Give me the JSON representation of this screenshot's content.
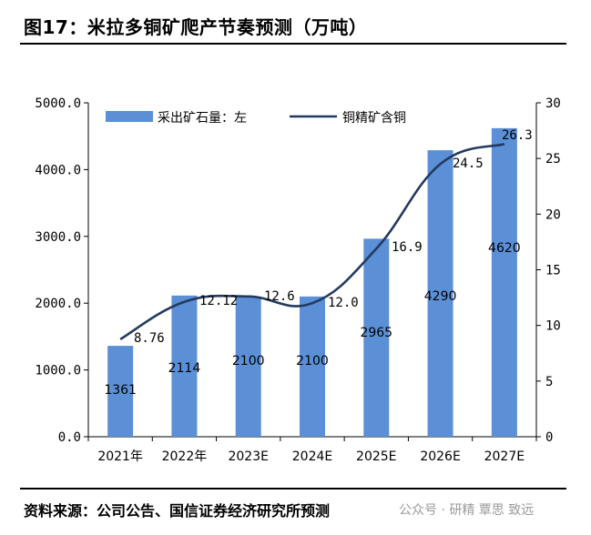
{
  "title": "图17：米拉多铜矿爬产节奏预测（万吨）",
  "source": "资料来源：公司公告、国信证券经济研究所预测",
  "watermark": "公众号 · 研精 覃思 致远",
  "chart_data": {
    "type": "bar+line",
    "categories": [
      "2021年",
      "2022年",
      "2023E",
      "2024E",
      "2025E",
      "2026E",
      "2027E"
    ],
    "series": [
      {
        "name": "采出矿石量：左",
        "type": "bar",
        "axis": "left",
        "values": [
          1361,
          2114,
          2100,
          2100,
          2965,
          4290,
          4620
        ],
        "labels": [
          "1361",
          "2114",
          "2100",
          "2100",
          "2965",
          "4290",
          "4620"
        ],
        "color": "#5b8fd6"
      },
      {
        "name": "铜精矿含铜",
        "type": "line",
        "axis": "right",
        "values": [
          8.76,
          12.12,
          12.6,
          12.0,
          16.9,
          24.5,
          26.3
        ],
        "labels": [
          "8.76",
          "12.12",
          "12.6",
          "12.0",
          "16.9",
          "24.5",
          "26.3"
        ],
        "color": "#233a5e"
      }
    ],
    "y_left": {
      "min": 0,
      "max": 5000,
      "ticks": [
        "0.0",
        "1000.0",
        "2000.0",
        "3000.0",
        "4000.0",
        "5000.0"
      ],
      "tick_values": [
        0,
        1000,
        2000,
        3000,
        4000,
        5000
      ]
    },
    "y_right": {
      "min": 0,
      "max": 30,
      "ticks": [
        "0",
        "5",
        "10",
        "15",
        "20",
        "25",
        "30"
      ],
      "tick_values": [
        0,
        5,
        10,
        15,
        20,
        25,
        30
      ]
    },
    "legend": [
      "采出矿石量：左",
      "铜精矿含铜"
    ],
    "legend_position": "top-left"
  }
}
